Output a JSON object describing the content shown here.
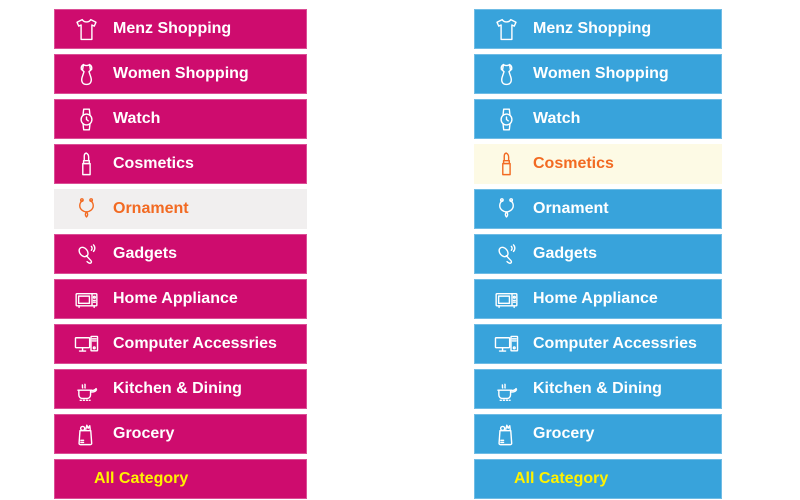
{
  "page": {
    "background": "#ffffff"
  },
  "left_menu": {
    "name": "category-menu-pink",
    "style": {
      "item_bg": "#CE0C6E",
      "item_text": "#FFFFFF",
      "active_bg": "#F1EFEF",
      "active_text": "#F26A22",
      "footer_text": "#FFF200"
    },
    "items": [
      {
        "label": "Menz Shopping",
        "icon": "tshirt-icon",
        "active": false,
        "footer": false
      },
      {
        "label": "Women Shopping",
        "icon": "dress-icon",
        "active": false,
        "footer": false
      },
      {
        "label": "Watch",
        "icon": "watch-icon",
        "active": false,
        "footer": false
      },
      {
        "label": "Cosmetics",
        "icon": "lipstick-icon",
        "active": false,
        "footer": false
      },
      {
        "label": "Ornament",
        "icon": "necklace-icon",
        "active": true,
        "footer": false
      },
      {
        "label": "Gadgets",
        "icon": "headset-icon",
        "active": false,
        "footer": false
      },
      {
        "label": "Home Appliance",
        "icon": "microwave-icon",
        "active": false,
        "footer": false
      },
      {
        "label": "Computer Accessries",
        "icon": "computer-icon",
        "active": false,
        "footer": false
      },
      {
        "label": "Kitchen & Dining",
        "icon": "cooking-pot-icon",
        "active": false,
        "footer": false
      },
      {
        "label": "Grocery",
        "icon": "grocery-bag-icon",
        "active": false,
        "footer": false
      },
      {
        "label": "All Category",
        "icon": null,
        "active": false,
        "footer": true
      }
    ]
  },
  "right_menu": {
    "name": "category-menu-blue",
    "style": {
      "item_bg": "#38A3DB",
      "item_text": "#FFFFFF",
      "active_bg": "#FDFAE5",
      "active_text": "#F26A22",
      "footer_text": "#FFF200"
    },
    "items": [
      {
        "label": "Menz Shopping",
        "icon": "tshirt-icon",
        "active": false,
        "footer": false
      },
      {
        "label": "Women Shopping",
        "icon": "dress-icon",
        "active": false,
        "footer": false
      },
      {
        "label": "Watch",
        "icon": "watch-icon",
        "active": false,
        "footer": false
      },
      {
        "label": "Cosmetics",
        "icon": "lipstick-icon",
        "active": true,
        "footer": false
      },
      {
        "label": "Ornament",
        "icon": "necklace-icon",
        "active": false,
        "footer": false
      },
      {
        "label": "Gadgets",
        "icon": "headset-icon",
        "active": false,
        "footer": false
      },
      {
        "label": "Home Appliance",
        "icon": "microwave-icon",
        "active": false,
        "footer": false
      },
      {
        "label": "Computer Accessries",
        "icon": "computer-icon",
        "active": false,
        "footer": false
      },
      {
        "label": "Kitchen & Dining",
        "icon": "cooking-pot-icon",
        "active": false,
        "footer": false
      },
      {
        "label": "Grocery",
        "icon": "grocery-bag-icon",
        "active": false,
        "footer": false
      },
      {
        "label": "All Category",
        "icon": null,
        "active": false,
        "footer": true
      }
    ]
  }
}
